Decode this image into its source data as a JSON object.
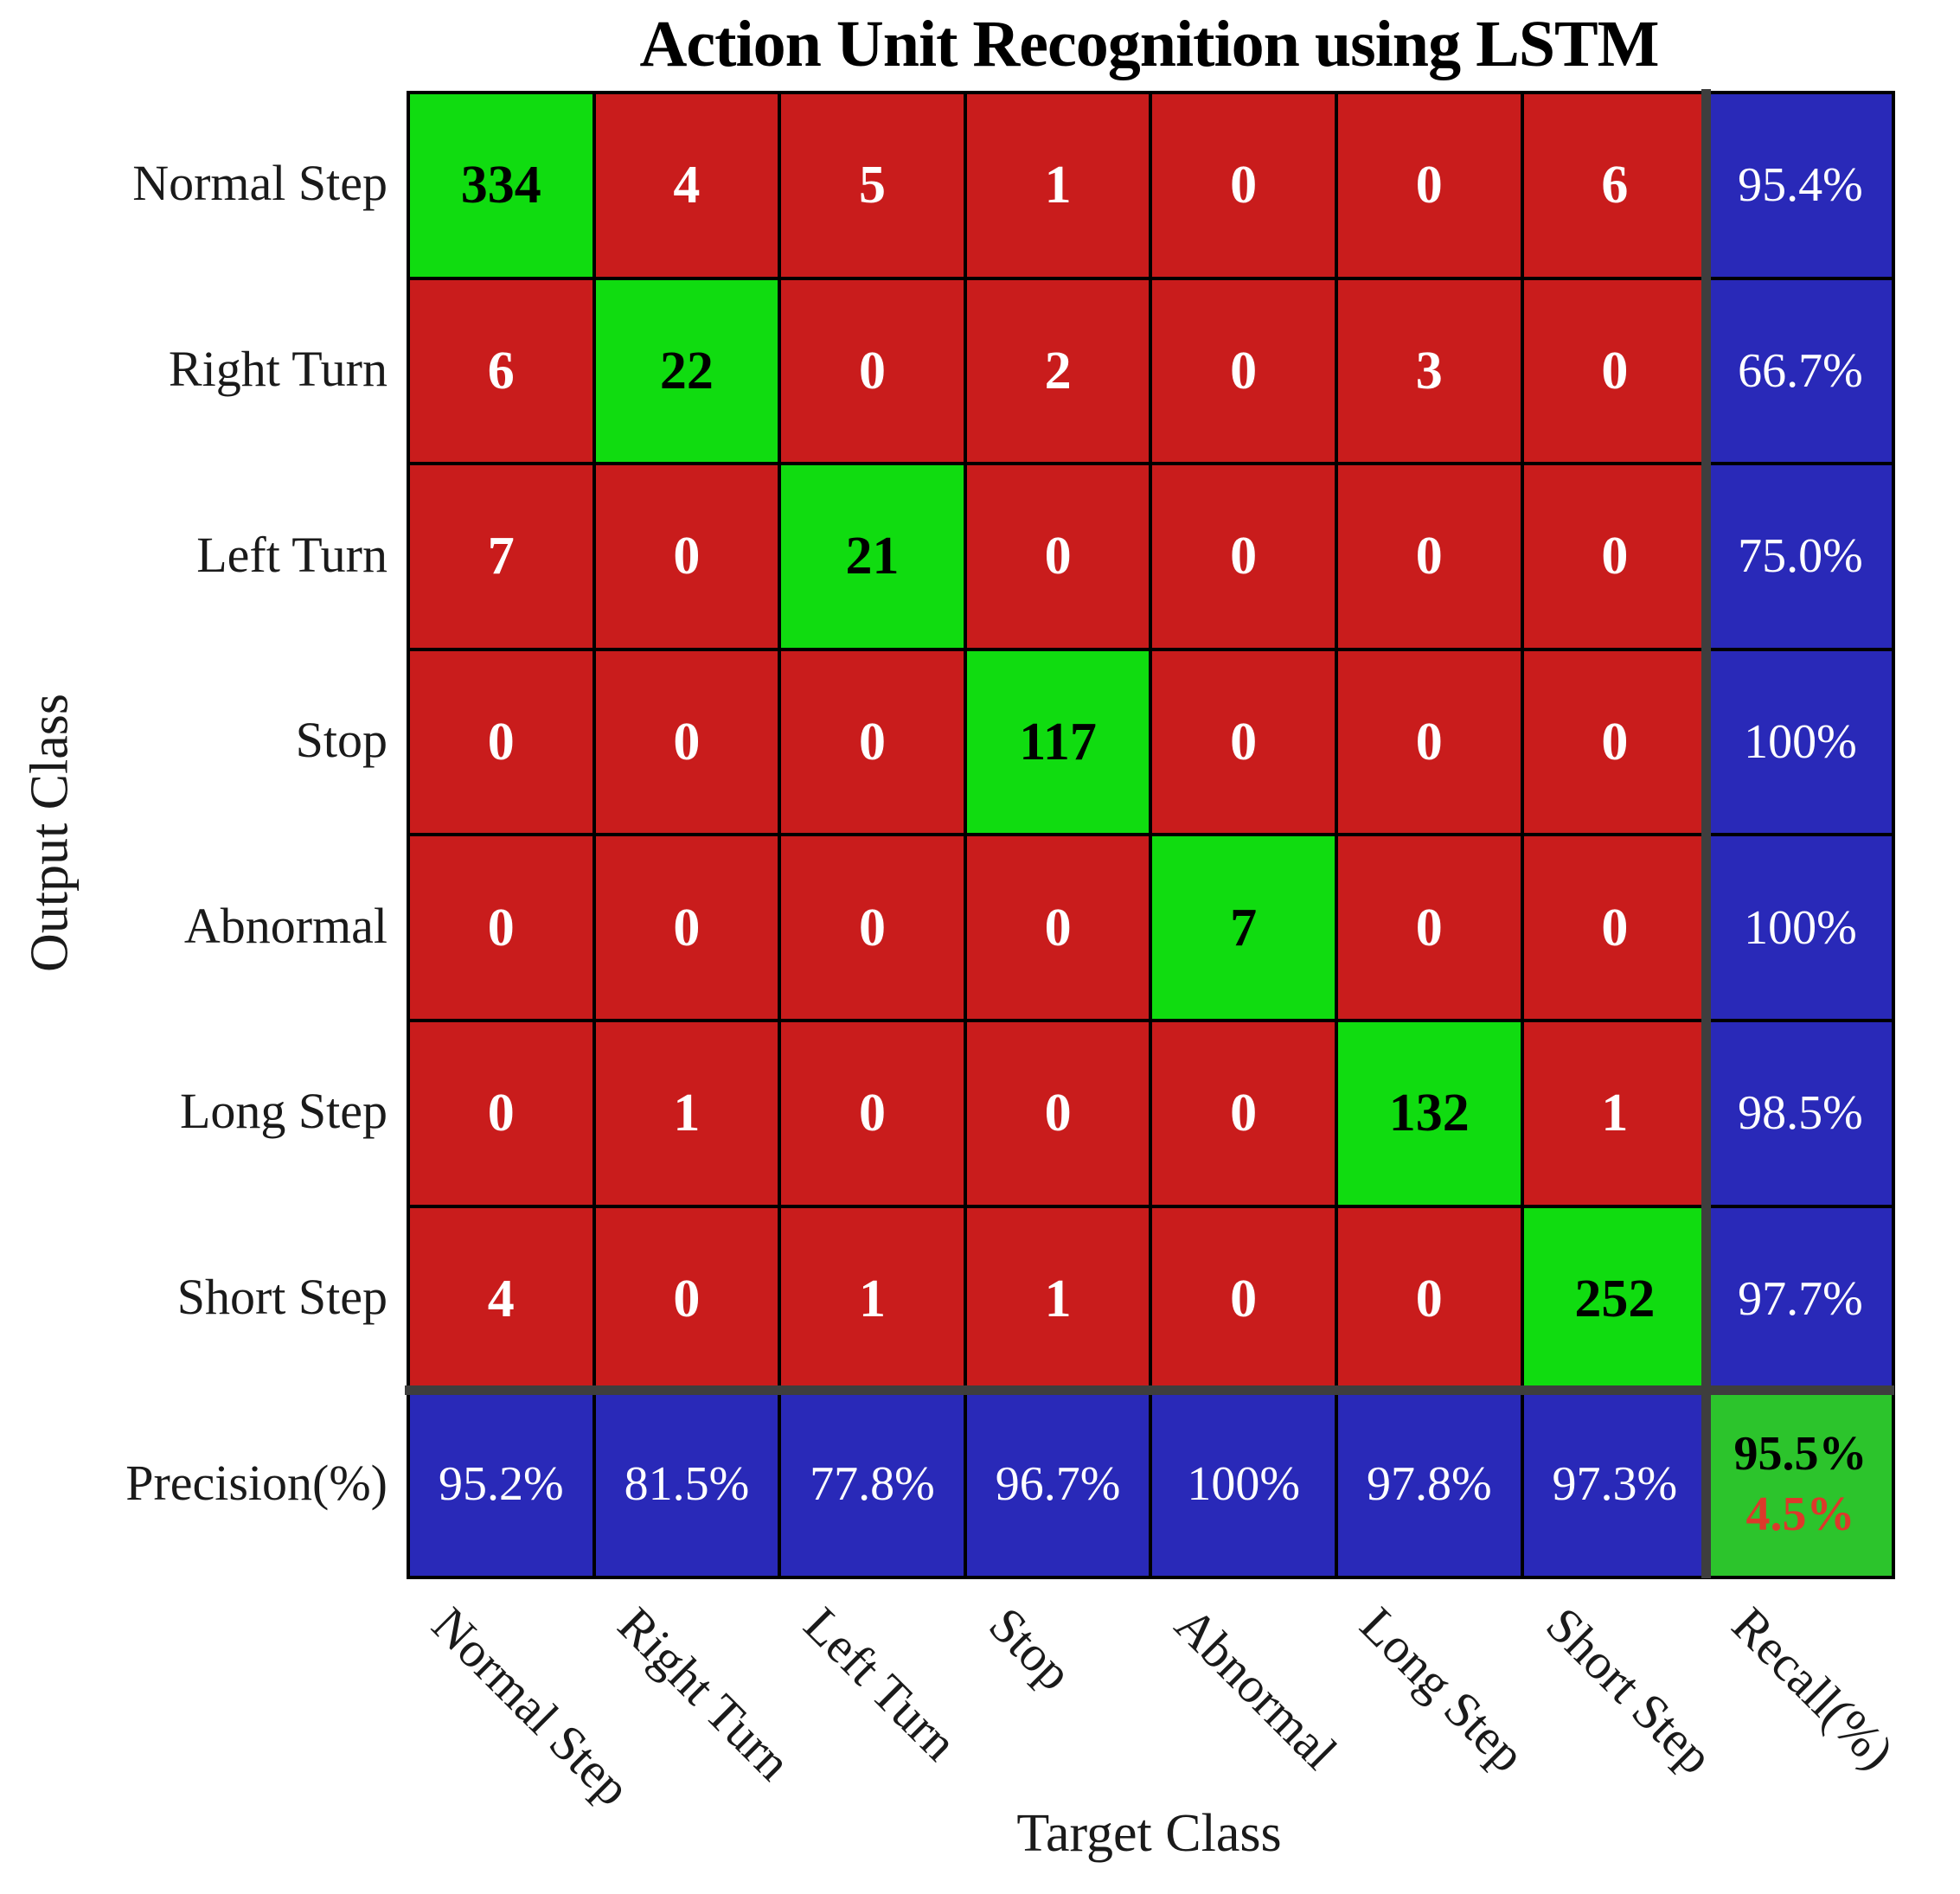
{
  "title": "Action Unit Recognition using LSTM",
  "axes": {
    "x_label": "Target Class",
    "y_label": "Output Class"
  },
  "summary_labels": {
    "precision_row": "Precision(%)",
    "recall_column": "Recall(%)"
  },
  "chart_data": {
    "type": "heatmap",
    "title": "Action Unit Recognition using LSTM",
    "xlabel": "Target Class",
    "ylabel": "Output Class",
    "categories": [
      "Normal Step",
      "Right Turn",
      "Left Turn",
      "Stop",
      "Abnormal",
      "Long Step",
      "Short Step"
    ],
    "matrix": [
      [
        334,
        4,
        5,
        1,
        0,
        0,
        6
      ],
      [
        6,
        22,
        0,
        2,
        0,
        3,
        0
      ],
      [
        7,
        0,
        21,
        0,
        0,
        0,
        0
      ],
      [
        0,
        0,
        0,
        117,
        0,
        0,
        0
      ],
      [
        0,
        0,
        0,
        0,
        7,
        0,
        0
      ],
      [
        0,
        1,
        0,
        0,
        0,
        132,
        1
      ],
      [
        4,
        0,
        1,
        1,
        0,
        0,
        252
      ]
    ],
    "recall": [
      "95.4%",
      "66.7%",
      "75.0%",
      "100%",
      "100%",
      "98.5%",
      "97.7%"
    ],
    "precision": [
      "95.2%",
      "81.5%",
      "77.8%",
      "96.7%",
      "100%",
      "97.8%",
      "97.3%"
    ],
    "overall_accuracy": "95.5%",
    "overall_error": "4.5%",
    "legend_position": "none",
    "grid": true
  },
  "colors": {
    "diagonal": "#10DC10",
    "off_diagonal": "#C91C1C",
    "summary": "#2929B8",
    "corner": "#2CC42C",
    "separator": "#3E3E3E",
    "error_text": "#DC392B"
  }
}
